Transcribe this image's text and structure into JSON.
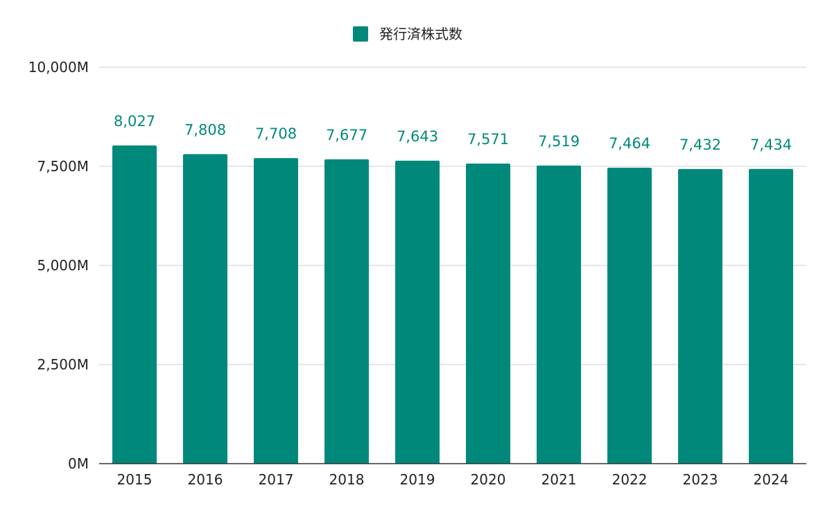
{
  "chart_data": {
    "type": "bar",
    "title": "",
    "xlabel": "",
    "ylabel": "",
    "categories": [
      "2015",
      "2016",
      "2017",
      "2018",
      "2019",
      "2020",
      "2021",
      "2022",
      "2023",
      "2024"
    ],
    "series": [
      {
        "name": "発行済株式数",
        "values": [
          8027,
          7808,
          7708,
          7677,
          7643,
          7571,
          7519,
          7464,
          7432,
          7434
        ],
        "data_labels": [
          "8,027",
          "7,808",
          "7,708",
          "7,677",
          "7,643",
          "7,571",
          "7,519",
          "7,464",
          "7,432",
          "7,434"
        ],
        "color": "#00897b"
      }
    ],
    "ylim": [
      0,
      10000
    ],
    "y_ticks": [
      0,
      2500,
      5000,
      7500,
      10000
    ],
    "y_tick_labels": [
      "0M",
      "2,500M",
      "5,000M",
      "7,500M",
      "10,000M"
    ],
    "grid": true,
    "legend_position": "top-center",
    "colors": {
      "bar": "#00897b",
      "data_label": "#00897b",
      "gridline": "#cccccc",
      "axis": "#333333",
      "tick_text": "#222222"
    }
  }
}
